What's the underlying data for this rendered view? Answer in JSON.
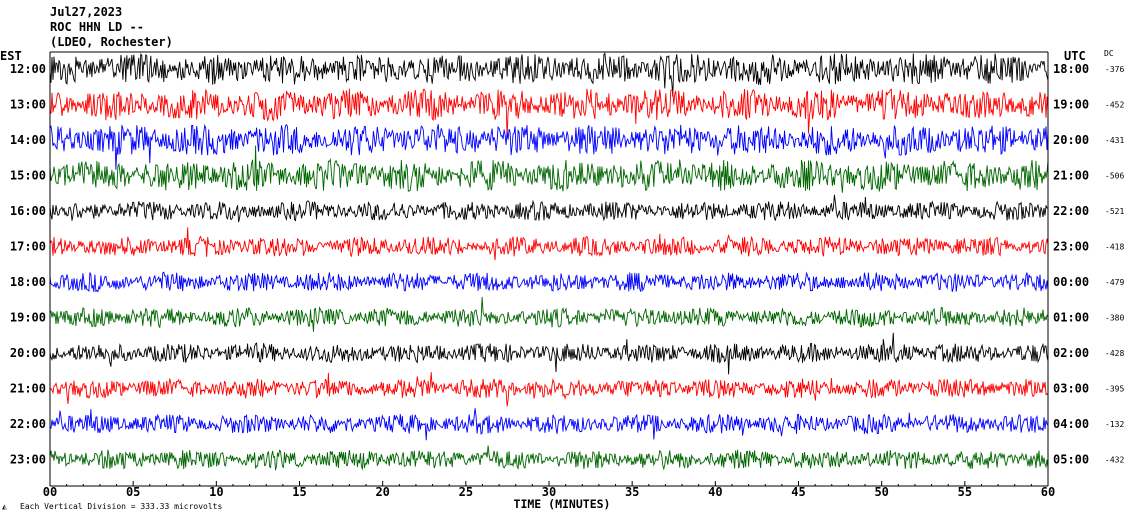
{
  "header": {
    "date": "Jul27,2023",
    "station": "ROC HHN LD --",
    "network": "(LDEO, Rochester)"
  },
  "chart_data": {
    "type": "line",
    "title": "Jul27,2023",
    "left_axis_label": "EST",
    "right_axis_label": "UTC",
    "dc_label": "DC",
    "xlabel": "TIME (MINUTES)",
    "xlim": [
      0,
      60
    ],
    "x_ticks": [
      0,
      5,
      10,
      15,
      20,
      25,
      30,
      35,
      40,
      45,
      50,
      55,
      60
    ],
    "x_tick_labels": [
      "00",
      "05",
      "10",
      "15",
      "20",
      "25",
      "30",
      "35",
      "40",
      "45",
      "50",
      "55",
      "60"
    ],
    "colors": [
      "#000000",
      "#ff0000",
      "#0000ff",
      "#006600"
    ],
    "rows": [
      {
        "local": "12:00",
        "utc": "18:00",
        "dc": "-376",
        "color": "#000000"
      },
      {
        "local": "13:00",
        "utc": "19:00",
        "dc": "-452",
        "color": "#ff0000"
      },
      {
        "local": "14:00",
        "utc": "20:00",
        "dc": "-431",
        "color": "#0000ff"
      },
      {
        "local": "15:00",
        "utc": "21:00",
        "dc": "-506",
        "color": "#006600"
      },
      {
        "local": "16:00",
        "utc": "22:00",
        "dc": "-521",
        "color": "#000000"
      },
      {
        "local": "17:00",
        "utc": "23:00",
        "dc": "-418",
        "color": "#ff0000"
      },
      {
        "local": "18:00",
        "utc": "00:00",
        "dc": "-479",
        "color": "#0000ff"
      },
      {
        "local": "19:00",
        "utc": "01:00",
        "dc": "-380",
        "color": "#006600"
      },
      {
        "local": "20:00",
        "utc": "02:00",
        "dc": "-428",
        "color": "#000000"
      },
      {
        "local": "21:00",
        "utc": "03:00",
        "dc": "-395",
        "color": "#ff0000"
      },
      {
        "local": "22:00",
        "utc": "04:00",
        "dc": "-132",
        "color": "#0000ff"
      },
      {
        "local": "23:00",
        "utc": "05:00",
        "dc": "-432",
        "color": "#006600"
      }
    ],
    "scale_note": "Each Vertical Division =  333.33 microvolts"
  }
}
